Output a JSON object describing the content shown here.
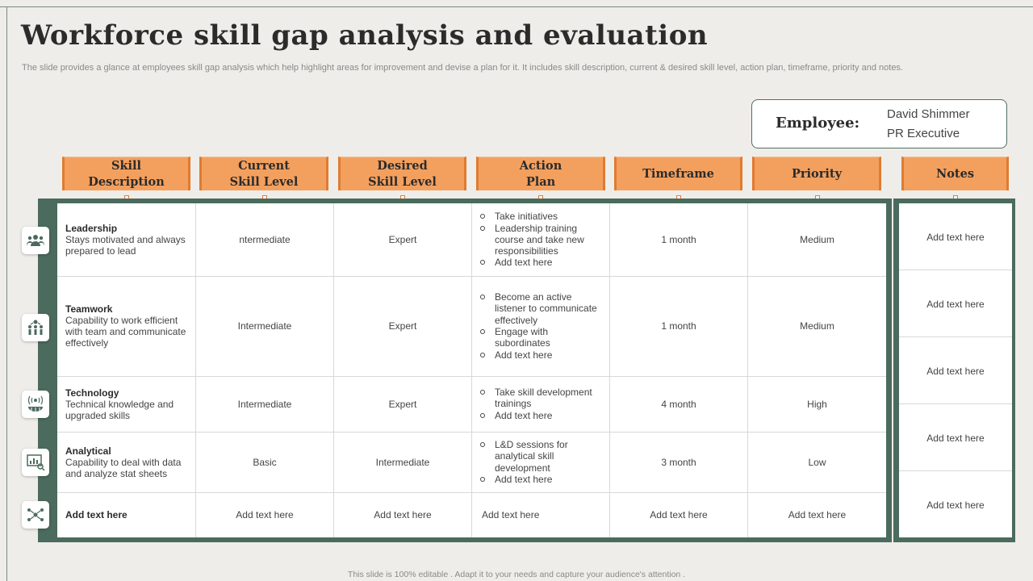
{
  "title": "Workforce skill gap analysis and evaluation",
  "subtitle": "The slide provides a glance at employees skill gap analysis which help highlight areas for improvement and devise a plan for it.  It includes skill description, current & desired skill level, action plan, timeframe, priority and notes.",
  "employee": {
    "label": "Employee:",
    "name": "David Shimmer",
    "role": "PR Executive"
  },
  "headers": [
    {
      "line1": "Skill",
      "line2": "Description"
    },
    {
      "line1": "Current",
      "line2": "Skill Level"
    },
    {
      "line1": "Desired",
      "line2": "Skill Level"
    },
    {
      "line1": "Action",
      "line2": "Plan"
    },
    {
      "line1": "Timeframe",
      "line2": ""
    },
    {
      "line1": "Priority",
      "line2": ""
    },
    {
      "line1": "Notes",
      "line2": ""
    }
  ],
  "rows": [
    {
      "icon": "leadership-group-icon",
      "skill": "Leadership",
      "description": "Stays motivated and always prepared to lead",
      "current": "ntermediate",
      "desired": "Expert",
      "plan": [
        "Take initiatives",
        "Leadership training course and take new responsibilities",
        "Add text here"
      ],
      "timeframe": "1 month",
      "priority": "Medium"
    },
    {
      "icon": "teamwork-icon",
      "skill": "Teamwork",
      "description": "Capability to work efficient with team and communicate effectively",
      "current": "Intermediate",
      "desired": "Expert",
      "plan": [
        "Become an active listener to communicate effectively",
        "Engage with subordinates",
        "Add text here"
      ],
      "timeframe": "1 month",
      "priority": "Medium"
    },
    {
      "icon": "technology-globe-icon",
      "skill": "Technology",
      "description": "Technical knowledge and upgraded skills",
      "current": "Intermediate",
      "desired": "Expert",
      "plan": [
        "Take skill development trainings",
        "Add text here"
      ],
      "timeframe": "4 month",
      "priority": "High"
    },
    {
      "icon": "analytics-chart-icon",
      "skill": "Analytical",
      "description": "Capability to deal with data and analyze stat sheets",
      "current": "Basic",
      "desired": "Intermediate",
      "plan": [
        "L&D sessions for analytical skill development",
        "Add text here"
      ],
      "timeframe": "3 month",
      "priority": "Low"
    },
    {
      "icon": "network-people-icon",
      "skill": "Add text here",
      "description": "",
      "current": "Add text here",
      "desired": "Add text here",
      "plan_text": "Add text here",
      "timeframe": "Add text here",
      "priority": "Add text here"
    }
  ],
  "notes": [
    "Add text here",
    "Add text here",
    "Add text here",
    "Add text here",
    "Add text here"
  ],
  "footer": "This slide is 100% editable . Adapt it to your needs and capture your audience's attention .",
  "colors": {
    "header_fill": "#f3a05f",
    "header_edge": "#e07b30",
    "frame_green": "#4b6b5e"
  }
}
